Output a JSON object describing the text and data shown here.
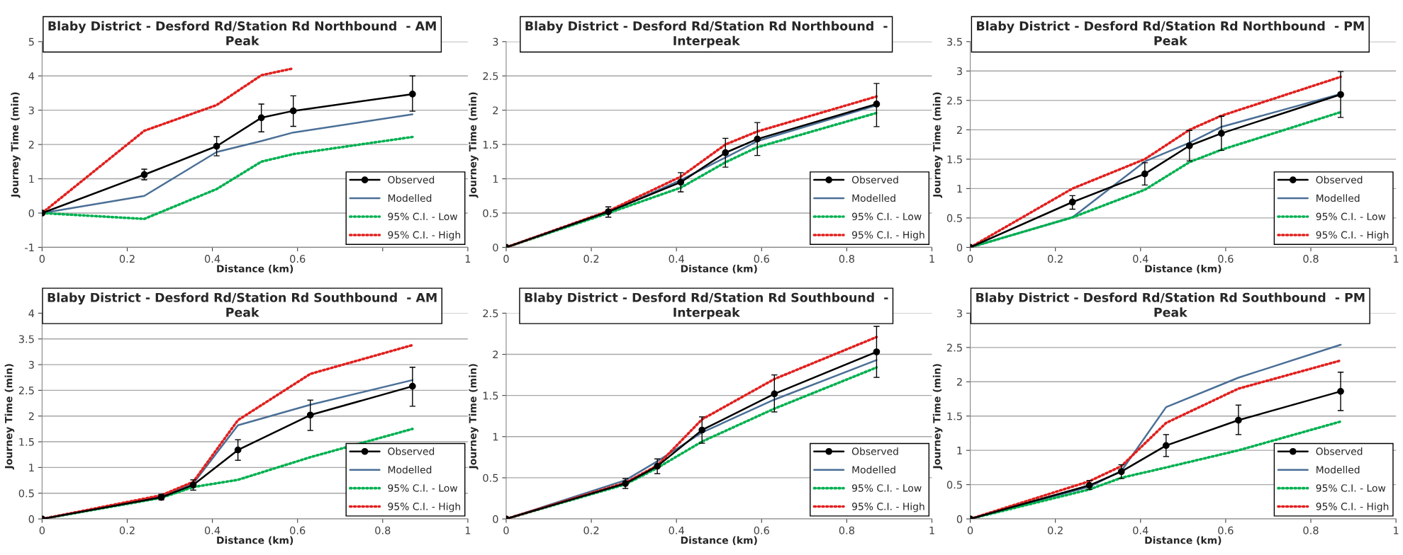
{
  "chart_data": [
    {
      "type": "line",
      "title": "Blaby District - Desford Rd/Station Rd Northbound  - AM\nPeak",
      "xlabel": "Distance (km)",
      "ylabel": "Journey Time (min)",
      "xlim": [
        0,
        1
      ],
      "xticks": [
        0,
        0.2,
        0.4,
        0.6,
        {
          "value": 0.8,
          "label": null
        },
        1
      ],
      "ylim": [
        -1,
        5
      ],
      "yticks": [
        -1,
        0,
        1,
        2,
        3,
        4,
        5
      ],
      "grid": "y",
      "legend": "bottom right",
      "x": [
        0,
        0.24,
        0.41,
        0.515,
        0.59,
        0.87
      ],
      "series": [
        {
          "name": "Observed",
          "color": "#000000",
          "marker": "circle",
          "line_style": "solid",
          "values": [
            0,
            1.12,
            1.95,
            2.78,
            2.98,
            3.47
          ],
          "errors": [
            null,
            [
              0.97,
              1.28
            ],
            [
              1.67,
              2.23
            ],
            [
              2.37,
              3.18
            ],
            [
              2.53,
              3.42
            ],
            [
              2.97,
              4.0
            ]
          ]
        },
        {
          "name": "Modelled",
          "color": "#4a6f96",
          "marker": "none",
          "line_style": "solid",
          "values": [
            0,
            0.5,
            1.78,
            2.1,
            2.35,
            2.88
          ]
        },
        {
          "name": "95% C.I. - Low",
          "color": "#00b050",
          "marker": "none",
          "line_style": "dotted",
          "values": [
            0,
            -0.17,
            0.7,
            1.5,
            1.72,
            2.22
          ]
        },
        {
          "name": "95% C.I. - High",
          "color": "#e0201e",
          "marker": "none",
          "line_style": "dotted",
          "values": [
            0,
            2.4,
            3.15,
            4.02,
            4.22,
            null
          ]
        }
      ]
    },
    {
      "type": "line",
      "title": "Blaby District - Desford Rd/Station Rd Northbound  -\nInterpeak",
      "xlabel": "Distance (km)",
      "ylabel": "Journey Time (min)",
      "xlim": [
        0,
        1
      ],
      "xticks": [
        0,
        0.2,
        0.4,
        0.6,
        0.8,
        1
      ],
      "ylim": [
        0,
        3
      ],
      "yticks": [
        0,
        0.5,
        1,
        1.5,
        2,
        2.5,
        3
      ],
      "grid": "y",
      "legend": "bottom right",
      "x": [
        0,
        0.24,
        0.41,
        0.515,
        0.59,
        0.87
      ],
      "series": [
        {
          "name": "Observed",
          "color": "#000000",
          "marker": "circle",
          "line_style": "solid",
          "values": [
            0,
            0.52,
            0.95,
            1.38,
            1.58,
            2.09
          ],
          "errors": [
            null,
            [
              0.44,
              0.59
            ],
            [
              0.81,
              1.09
            ],
            [
              1.17,
              1.59
            ],
            [
              1.34,
              1.82
            ],
            [
              1.76,
              2.39
            ]
          ]
        },
        {
          "name": "Modelled",
          "color": "#4a6f96",
          "marker": "none",
          "line_style": "solid",
          "values": [
            0,
            0.51,
            0.98,
            1.31,
            1.55,
            2.07
          ]
        },
        {
          "name": "95% C.I. - Low",
          "color": "#00b050",
          "marker": "none",
          "line_style": "dotted",
          "values": [
            0,
            0.5,
            0.87,
            1.24,
            1.46,
            1.96
          ]
        },
        {
          "name": "95% C.I. - High",
          "color": "#e0201e",
          "marker": "none",
          "line_style": "dotted",
          "values": [
            0,
            0.53,
            1.03,
            1.5,
            1.69,
            2.2
          ]
        }
      ]
    },
    {
      "type": "line",
      "title": "Blaby District - Desford Rd/Station Rd Northbound  - PM\nPeak",
      "xlabel": "Distance (km)",
      "ylabel": "Journey Time (min)",
      "xlim": [
        0,
        1
      ],
      "xticks": [
        0,
        0.2,
        0.4,
        0.6,
        0.8,
        1
      ],
      "ylim": [
        0,
        3.5
      ],
      "yticks": [
        0,
        0.5,
        1,
        1.5,
        2,
        2.5,
        3,
        3.5
      ],
      "grid": "y",
      "legend": "bottom right",
      "x": [
        0,
        0.24,
        0.41,
        0.515,
        0.59,
        0.87
      ],
      "series": [
        {
          "name": "Observed",
          "color": "#000000",
          "marker": "circle",
          "line_style": "solid",
          "values": [
            0,
            0.77,
            1.25,
            1.73,
            1.94,
            2.6
          ],
          "errors": [
            null,
            [
              0.65,
              0.88
            ],
            [
              1.06,
              1.44
            ],
            [
              1.47,
              1.99
            ],
            [
              1.65,
              2.23
            ],
            [
              2.21,
              2.99
            ]
          ]
        },
        {
          "name": "Modelled",
          "color": "#4a6f96",
          "marker": "none",
          "line_style": "solid",
          "values": [
            0,
            0.51,
            1.46,
            1.78,
            2.05,
            2.61
          ]
        },
        {
          "name": "95% C.I. - Low",
          "color": "#00b050",
          "marker": "none",
          "line_style": "dotted",
          "values": [
            0,
            0.51,
            0.98,
            1.45,
            1.66,
            2.3
          ]
        },
        {
          "name": "95% C.I. - High",
          "color": "#e0201e",
          "marker": "none",
          "line_style": "dotted",
          "values": [
            0,
            1.0,
            1.5,
            2.0,
            2.24,
            2.9
          ]
        }
      ]
    },
    {
      "type": "line",
      "title": "Blaby District - Desford Rd/Station Rd Southbound  - AM\nPeak",
      "xlabel": "Distance (km)",
      "ylabel": "Journey Time (min)",
      "xlim": [
        0,
        1
      ],
      "xticks": [
        0,
        0.2,
        0.4,
        0.6,
        0.8,
        1
      ],
      "ylim": [
        0,
        4
      ],
      "yticks": [
        0,
        0.5,
        1,
        1.5,
        2,
        2.5,
        3,
        3.5,
        4
      ],
      "grid": "y",
      "legend": "bottom right",
      "x": [
        0,
        0.28,
        0.355,
        0.46,
        0.63,
        0.87
      ],
      "series": [
        {
          "name": "Observed",
          "color": "#000000",
          "marker": "circle",
          "line_style": "solid",
          "values": [
            0,
            0.42,
            0.66,
            1.34,
            2.02,
            2.58
          ],
          "errors": [
            null,
            [
              0.37,
              0.48
            ],
            [
              0.56,
              0.76
            ],
            [
              1.14,
              1.54
            ],
            [
              1.72,
              2.31
            ],
            [
              2.19,
              2.95
            ]
          ]
        },
        {
          "name": "Modelled",
          "color": "#4a6f96",
          "marker": "none",
          "line_style": "solid",
          "values": [
            0,
            0.44,
            0.69,
            1.82,
            2.22,
            2.7
          ]
        },
        {
          "name": "95% C.I. - Low",
          "color": "#00b050",
          "marker": "none",
          "line_style": "dotted",
          "values": [
            0,
            0.41,
            0.62,
            0.76,
            1.2,
            1.75
          ]
        },
        {
          "name": "95% C.I. - High",
          "color": "#e0201e",
          "marker": "none",
          "line_style": "dotted",
          "values": [
            0,
            0.46,
            0.72,
            1.92,
            2.82,
            3.38
          ]
        }
      ]
    },
    {
      "type": "line",
      "title": "Blaby District - Desford Rd/Station Rd Southbound  -\nInterpeak",
      "xlabel": "Distance (km)",
      "ylabel": "Journey Time (min)",
      "xlim": [
        0,
        1
      ],
      "xticks": [
        0,
        0.2,
        0.4,
        0.6,
        0.8,
        1
      ],
      "ylim": [
        0,
        2.5
      ],
      "yticks": [
        0,
        0.5,
        1,
        1.5,
        2,
        2.5
      ],
      "grid": "y",
      "legend": "bottom right",
      "x": [
        0,
        0.28,
        0.355,
        0.46,
        0.63,
        0.87
      ],
      "series": [
        {
          "name": "Observed",
          "color": "#000000",
          "marker": "circle",
          "line_style": "solid",
          "values": [
            0,
            0.43,
            0.64,
            1.08,
            1.52,
            2.03
          ],
          "errors": [
            null,
            [
              0.37,
              0.49
            ],
            [
              0.55,
              0.73
            ],
            [
              0.92,
              1.24
            ],
            [
              1.3,
              1.75
            ],
            [
              1.72,
              2.34
            ]
          ]
        },
        {
          "name": "Modelled",
          "color": "#4a6f96",
          "marker": "none",
          "line_style": "solid",
          "values": [
            0,
            0.47,
            0.7,
            1.05,
            1.45,
            1.93
          ]
        },
        {
          "name": "95% C.I. - Low",
          "color": "#00b050",
          "marker": "none",
          "line_style": "dotted",
          "values": [
            0,
            0.42,
            0.62,
            0.94,
            1.34,
            1.84
          ]
        },
        {
          "name": "95% C.I. - High",
          "color": "#e0201e",
          "marker": "none",
          "line_style": "dotted",
          "values": [
            0,
            0.44,
            0.65,
            1.21,
            1.7,
            2.21
          ]
        }
      ]
    },
    {
      "type": "line",
      "title": "Blaby District - Desford Rd/Station Rd Southbound  - PM\nPeak",
      "xlabel": "Distance (km)",
      "ylabel": "Journey Time (min)",
      "xlim": [
        0,
        1
      ],
      "xticks": [
        0,
        0.2,
        0.4,
        0.6,
        0.8,
        1
      ],
      "ylim": [
        0,
        3
      ],
      "yticks": [
        0,
        0.5,
        1,
        1.5,
        2,
        2.5,
        3
      ],
      "grid": "y",
      "legend": "bottom right",
      "x": [
        0,
        0.28,
        0.355,
        0.46,
        0.63,
        0.87
      ],
      "series": [
        {
          "name": "Observed",
          "color": "#000000",
          "marker": "circle",
          "line_style": "solid",
          "values": [
            0,
            0.49,
            0.69,
            1.07,
            1.44,
            1.86
          ],
          "errors": [
            null,
            [
              0.43,
              0.56
            ],
            [
              0.59,
              0.79
            ],
            [
              0.91,
              1.23
            ],
            [
              1.23,
              1.66
            ],
            [
              1.58,
              2.14
            ]
          ]
        },
        {
          "name": "Modelled",
          "color": "#4a6f96",
          "marker": "none",
          "line_style": "solid",
          "values": [
            0,
            0.47,
            0.7,
            1.63,
            2.06,
            2.54
          ]
        },
        {
          "name": "95% C.I. - Low",
          "color": "#00b050",
          "marker": "none",
          "line_style": "dotted",
          "values": [
            0,
            0.43,
            0.6,
            0.75,
            1.0,
            1.42
          ]
        },
        {
          "name": "95% C.I. - High",
          "color": "#e0201e",
          "marker": "none",
          "line_style": "dotted",
          "values": [
            0,
            0.55,
            0.77,
            1.4,
            1.9,
            2.31
          ]
        }
      ]
    }
  ]
}
